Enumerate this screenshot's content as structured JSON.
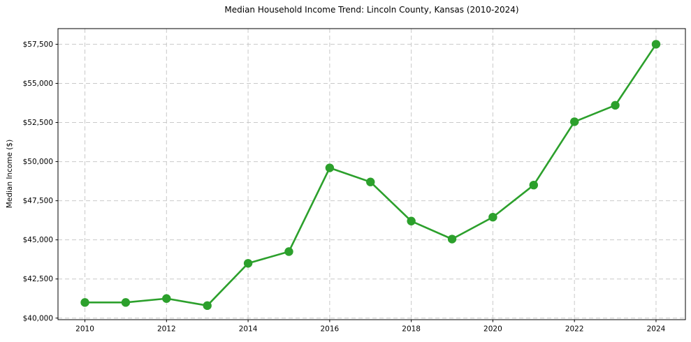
{
  "figure": {
    "background": "#ffffff"
  },
  "chart_data": {
    "type": "line",
    "title": "Median Household Income Trend: Lincoln County, Kansas (2010-2024)",
    "xlabel": "",
    "ylabel": "Median Income ($)",
    "x": [
      2010,
      2011,
      2012,
      2013,
      2014,
      2015,
      2016,
      2017,
      2018,
      2019,
      2020,
      2021,
      2022,
      2023,
      2024
    ],
    "values": [
      41000,
      41000,
      41250,
      40800,
      43500,
      44250,
      49600,
      48700,
      46200,
      45050,
      46450,
      48500,
      52550,
      53600,
      57500
    ],
    "xticks": {
      "values": [
        2010,
        2012,
        2014,
        2016,
        2018,
        2020,
        2022,
        2024
      ],
      "labels": [
        "2010",
        "2012",
        "2014",
        "2016",
        "2018",
        "2020",
        "2022",
        "2024"
      ]
    },
    "yticks": {
      "values": [
        40000,
        42500,
        45000,
        47500,
        50000,
        52500,
        55000,
        57500
      ],
      "labels": [
        "$40,000",
        "$42,500",
        "$45,000",
        "$47,500",
        "$50,000",
        "$52,500",
        "$55,000",
        "$57,500"
      ]
    },
    "xlim": [
      2009.34,
      2024.72
    ],
    "ylim": [
      39900,
      58500
    ],
    "grid": true,
    "grid_style": "dashed",
    "grid_color": "#c9c9c9",
    "line_color": "#2ca02c",
    "marker": "circle",
    "marker_radius": 6.2,
    "line_width": 2.6,
    "spine_color": "#000000",
    "tick_color": "#000000",
    "legend": "none"
  }
}
